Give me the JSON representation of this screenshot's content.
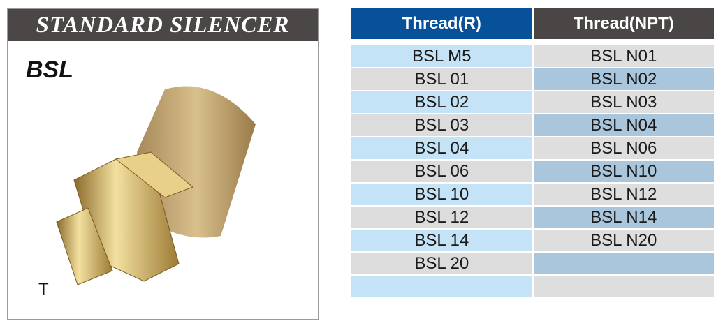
{
  "panel": {
    "title": "STANDARD SILENCER",
    "model": "BSL",
    "thread_type_label": "T"
  },
  "table": {
    "headers": [
      "Thread(R)",
      "Thread(NPT)"
    ],
    "header_colors": [
      "#07519a",
      "#4a4646"
    ],
    "rows": [
      [
        "BSL M5",
        "BSL N01"
      ],
      [
        "BSL 01",
        "BSL N02"
      ],
      [
        "BSL 02",
        "BSL N03"
      ],
      [
        "BSL 03",
        "BSL N04"
      ],
      [
        "BSL 04",
        "BSL N06"
      ],
      [
        "BSL 06",
        "BSL N10"
      ],
      [
        "BSL 10",
        "BSL N12"
      ],
      [
        "BSL 12",
        "BSL N14"
      ],
      [
        "BSL 14",
        "BSL N20"
      ],
      [
        "BSL 20",
        ""
      ],
      [
        "",
        ""
      ]
    ]
  }
}
